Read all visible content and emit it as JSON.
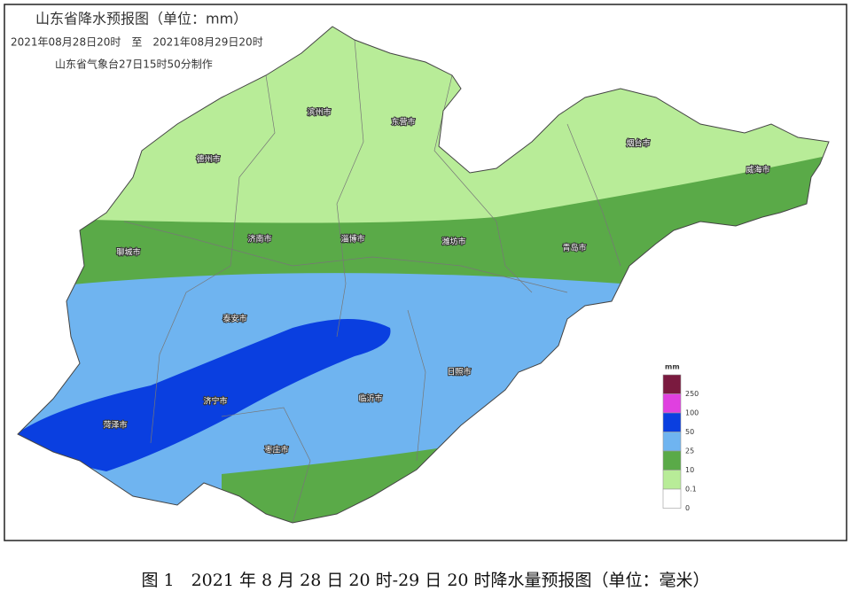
{
  "header": {
    "title": "山东省降水预报图（单位：mm）",
    "period": "2021年08月28日20时　至　2021年08月29日20时",
    "issuer": "山东省气象台27日15时50分制作"
  },
  "cities": [
    "滨州市",
    "东营市",
    "德州市",
    "烟台市",
    "威海市",
    "聊城市",
    "济南市",
    "淄博市",
    "潍坊市",
    "青岛市",
    "泰安市",
    "日照市",
    "济宁市",
    "临沂市",
    "菏泽市",
    "枣庄市"
  ],
  "legend": {
    "unit": "mm",
    "colors": [
      "#7a1a3f",
      "#e040e0",
      "#0a3fe0",
      "#6fb4f0",
      "#5aaa48",
      "#b8ec98",
      "#ffffff"
    ],
    "ticks": [
      250,
      100,
      50,
      25,
      10,
      0.1,
      0
    ]
  },
  "caption": "图 1　2021 年 8 月 28 日 20 时-29 日 20 时降水量预报图（单位：毫米）"
}
